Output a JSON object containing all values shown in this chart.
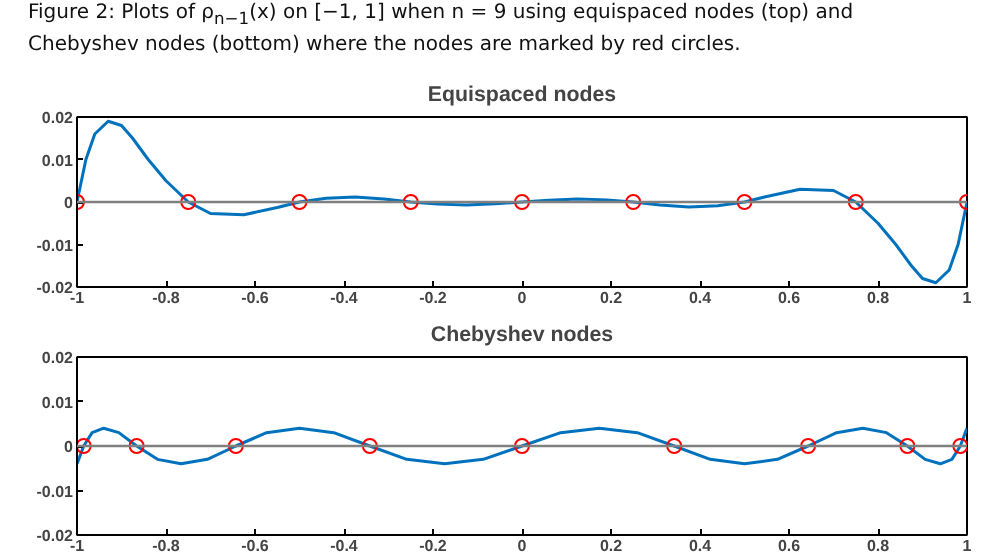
{
  "chart_data": [
    {
      "type": "line",
      "title": "Equispaced nodes",
      "annotations": [
        "Figure 2: Plots of ρ$_{n−1}$(x) on [−1, 1] when n = 9 using equispaced nodes (top) and Chebyshev nodes (bottom) where the nodes are marked by red circles."
      ],
      "xlim": [
        -1,
        1
      ],
      "xticks": [
        -1,
        -0.8,
        -0.6,
        -0.4,
        -0.2,
        0,
        0.2,
        0.4,
        0.6,
        0.8,
        1
      ],
      "ylim": [
        -0.02,
        0.02
      ],
      "yticks": [
        -0.02,
        -0.01,
        0,
        0.01,
        0.02
      ],
      "grid": false,
      "ref_lines": [
        {
          "axis": "y",
          "value": 0,
          "color": "#808080"
        }
      ],
      "series": [
        {
          "color": "#0072bd",
          "x": [
            -1,
            -0.98,
            -0.96,
            -0.93,
            -0.9,
            -0.875,
            -0.84,
            -0.8,
            -0.75,
            -0.7,
            -0.625,
            -0.55,
            -0.5,
            -0.44,
            -0.375,
            -0.31,
            -0.25,
            -0.19,
            -0.125,
            -0.06,
            0,
            0.06,
            0.125,
            0.19,
            0.25,
            0.31,
            0.375,
            0.44,
            0.5,
            0.55,
            0.625,
            0.7,
            0.75,
            0.8,
            0.84,
            0.875,
            0.9,
            0.93,
            0.96,
            0.98,
            1
          ],
          "values": [
            0,
            0.01,
            0.016,
            0.019,
            0.018,
            0.015,
            0.01,
            0.005,
            0,
            -0.0027,
            -0.003,
            -0.0013,
            0,
            0.0009,
            0.0012,
            0.0007,
            0,
            -0.0005,
            -0.0007,
            -0.0004,
            0,
            0.0004,
            0.0007,
            0.0005,
            0,
            -0.0007,
            -0.0012,
            -0.0009,
            0,
            0.0013,
            0.003,
            0.0027,
            0,
            -0.005,
            -0.01,
            -0.015,
            -0.018,
            -0.019,
            -0.016,
            -0.01,
            0
          ]
        },
        {
          "type": "scatter",
          "marker": "circle",
          "color": "#ff0000",
          "x": [
            -1,
            -0.75,
            -0.5,
            -0.25,
            0,
            0.25,
            0.5,
            0.75,
            1
          ],
          "values": [
            0,
            0,
            0,
            0,
            0,
            0,
            0,
            0,
            0
          ]
        }
      ]
    },
    {
      "type": "line",
      "title": "Chebyshev nodes",
      "xlim": [
        -1,
        1
      ],
      "xticks": [
        -1,
        -0.8,
        -0.6,
        -0.4,
        -0.2,
        0,
        0.2,
        0.4,
        0.6,
        0.8,
        1
      ],
      "ylim": [
        -0.02,
        0.02
      ],
      "yticks": [
        -0.02,
        -0.01,
        0,
        0.01,
        0.02
      ],
      "grid": false,
      "ref_lines": [
        {
          "axis": "y",
          "value": 0,
          "color": "#808080"
        }
      ],
      "series": [
        {
          "color": "#0072bd",
          "x": [
            -1,
            -0.996,
            -0.985,
            -0.966,
            -0.94,
            -0.906,
            -0.866,
            -0.819,
            -0.766,
            -0.707,
            -0.643,
            -0.574,
            -0.5,
            -0.423,
            -0.342,
            -0.259,
            -0.174,
            -0.087,
            0,
            0.087,
            0.174,
            0.259,
            0.342,
            0.423,
            0.5,
            0.574,
            0.643,
            0.707,
            0.766,
            0.819,
            0.866,
            0.906,
            0.94,
            0.966,
            0.985,
            0.996,
            1
          ],
          "values": [
            -0.004,
            -0.003,
            0,
            0.003,
            0.004,
            0.003,
            0,
            -0.003,
            -0.004,
            -0.003,
            0,
            0.003,
            0.004,
            0.003,
            0,
            -0.003,
            -0.004,
            -0.003,
            0,
            0.003,
            0.004,
            0.003,
            0,
            -0.003,
            -0.004,
            -0.003,
            0,
            0.003,
            0.004,
            0.003,
            0,
            -0.003,
            -0.004,
            -0.003,
            0,
            0.003,
            0.004
          ]
        },
        {
          "type": "scatter",
          "marker": "circle",
          "color": "#ff0000",
          "x": [
            -0.985,
            -0.866,
            -0.643,
            -0.342,
            0,
            0.342,
            0.643,
            0.866,
            0.985
          ],
          "values": [
            0,
            0,
            0,
            0,
            0,
            0,
            0,
            0,
            0
          ]
        }
      ]
    }
  ]
}
